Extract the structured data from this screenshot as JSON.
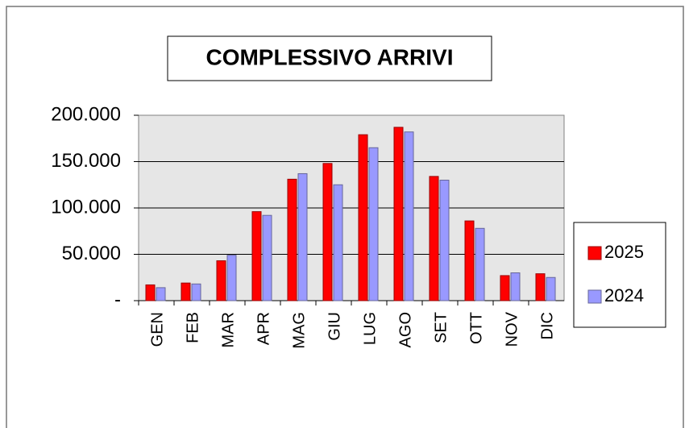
{
  "chart_data": {
    "type": "bar",
    "title": "COMPLESSIVO ARRIVI",
    "categories": [
      "GEN",
      "FEB",
      "MAR",
      "APR",
      "MAG",
      "GIU",
      "LUG",
      "AGO",
      "SET",
      "OTT",
      "NOV",
      "DIC"
    ],
    "series": [
      {
        "name": "2025",
        "color": "#ff0000",
        "values": [
          17000,
          19000,
          43000,
          96000,
          131000,
          148000,
          179000,
          187000,
          134000,
          86000,
          27000,
          29000
        ]
      },
      {
        "name": "2024",
        "color": "#9999ff",
        "values": [
          14000,
          18000,
          49000,
          92000,
          137000,
          125000,
          165000,
          182000,
          130000,
          78000,
          30000,
          25000
        ]
      }
    ],
    "ylim": [
      0,
      200000
    ],
    "yticks": [
      {
        "value": 0,
        "label": "-"
      },
      {
        "value": 50000,
        "label": "50.000"
      },
      {
        "value": 100000,
        "label": "100.000"
      },
      {
        "value": 150000,
        "label": "150.000"
      },
      {
        "value": 200000,
        "label": "200.000"
      }
    ],
    "grid": true,
    "legend": "right"
  }
}
